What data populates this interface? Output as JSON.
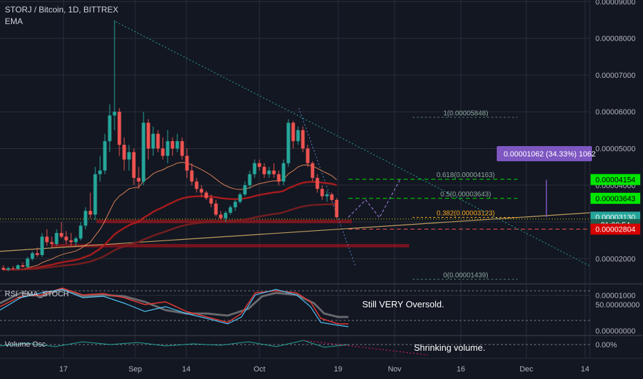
{
  "header": {
    "symbol": "STORJ / Bitcoin, 1D, BITTREX",
    "indicator": "EMA"
  },
  "panes": {
    "rsi_title": "RSI_EMA_STOCH",
    "volume_title": "Volume Osc"
  },
  "colors": {
    "background": "#131722",
    "up_candle": "#26a69a",
    "down_candle": "#ef5350",
    "grid": "#2a2e39",
    "axis_text": "#b2b5be",
    "fib_green": "#26a69a",
    "fib_orange": "#f5a623",
    "target_green": "#00e600",
    "current_price": "#26a69a",
    "support_red": "#c4121c",
    "measure_purple": "#7e57c2"
  },
  "chart_data": {
    "type": "candlestick",
    "price_axis": {
      "ticks": [
        "0.00009000",
        "0.00008000",
        "0.00007000",
        "0.00006000",
        "0.00005000",
        "0.00004000",
        "0.00003000",
        "0.00002000",
        "0.00001000"
      ],
      "ylim": [
        8.5e-06,
        9.15e-05
      ]
    },
    "time_axis": {
      "labels": [
        "17",
        "Sep",
        "14",
        "Oct",
        "19",
        "Nov",
        "16",
        "Dec",
        "14"
      ]
    },
    "candles_key": [
      "open",
      "high",
      "low",
      "close"
    ],
    "candles": [
      [
        1.75,
        1.82,
        1.68,
        1.7
      ],
      [
        1.7,
        1.78,
        1.66,
        1.74
      ],
      [
        1.74,
        1.8,
        1.7,
        1.72
      ],
      [
        1.72,
        1.85,
        1.7,
        1.82
      ],
      [
        1.82,
        1.9,
        1.76,
        1.78
      ],
      [
        1.78,
        2.05,
        1.75,
        2.0
      ],
      [
        2.0,
        2.2,
        1.95,
        2.15
      ],
      [
        2.15,
        2.3,
        2.05,
        2.1
      ],
      [
        2.1,
        2.7,
        2.05,
        2.6
      ],
      [
        2.6,
        2.8,
        2.35,
        2.45
      ],
      [
        2.45,
        2.6,
        2.3,
        2.4
      ],
      [
        2.4,
        2.8,
        2.35,
        2.7
      ],
      [
        2.7,
        3.0,
        2.55,
        2.6
      ],
      [
        2.6,
        2.75,
        2.4,
        2.5
      ],
      [
        2.5,
        2.7,
        2.35,
        2.45
      ],
      [
        2.45,
        2.6,
        2.35,
        2.55
      ],
      [
        2.55,
        3.0,
        2.5,
        2.9
      ],
      [
        2.9,
        3.4,
        2.8,
        3.3
      ],
      [
        3.3,
        3.8,
        3.1,
        3.2
      ],
      [
        3.2,
        4.5,
        3.05,
        4.3
      ],
      [
        4.3,
        4.8,
        4.1,
        4.4
      ],
      [
        4.4,
        5.4,
        4.3,
        5.2
      ],
      [
        5.2,
        6.2,
        4.9,
        5.9
      ],
      [
        5.9,
        8.5,
        5.5,
        6.0
      ],
      [
        6.0,
        6.1,
        4.8,
        5.1
      ],
      [
        5.1,
        5.3,
        4.4,
        4.7
      ],
      [
        4.7,
        5.1,
        4.4,
        4.9
      ],
      [
        4.9,
        5.0,
        4.0,
        4.2
      ],
      [
        4.2,
        4.5,
        3.9,
        4.1
      ],
      [
        4.1,
        6.0,
        4.0,
        5.7
      ],
      [
        5.7,
        5.8,
        4.7,
        5.0
      ],
      [
        5.0,
        5.6,
        4.8,
        5.4
      ],
      [
        5.4,
        5.5,
        4.9,
        5.0
      ],
      [
        5.0,
        5.3,
        4.7,
        4.8
      ],
      [
        4.8,
        5.5,
        4.6,
        5.2
      ],
      [
        5.2,
        5.3,
        4.8,
        5.0
      ],
      [
        5.0,
        5.4,
        4.9,
        5.2
      ],
      [
        5.2,
        5.3,
        4.7,
        4.8
      ],
      [
        4.8,
        5.0,
        4.2,
        4.4
      ],
      [
        4.4,
        4.6,
        4.0,
        4.1
      ],
      [
        4.1,
        4.2,
        3.8,
        3.9
      ],
      [
        3.9,
        4.0,
        3.7,
        3.8
      ],
      [
        3.8,
        3.85,
        3.6,
        3.65
      ],
      [
        3.65,
        3.75,
        3.4,
        3.5
      ],
      [
        3.5,
        3.6,
        3.15,
        3.2
      ],
      [
        3.2,
        3.3,
        3.05,
        3.1
      ],
      [
        3.1,
        3.3,
        3.0,
        3.25
      ],
      [
        3.25,
        3.45,
        3.2,
        3.4
      ],
      [
        3.4,
        3.6,
        3.3,
        3.55
      ],
      [
        3.55,
        3.8,
        3.5,
        3.75
      ],
      [
        3.75,
        4.1,
        3.7,
        4.0
      ],
      [
        4.0,
        4.4,
        3.9,
        4.3
      ],
      [
        4.3,
        4.7,
        4.2,
        4.6
      ],
      [
        4.6,
        4.7,
        4.4,
        4.5
      ],
      [
        4.5,
        4.6,
        4.2,
        4.3
      ],
      [
        4.3,
        4.5,
        4.2,
        4.4
      ],
      [
        4.4,
        4.6,
        4.2,
        4.3
      ],
      [
        4.3,
        4.4,
        4.0,
        4.1
      ],
      [
        4.1,
        4.7,
        4.0,
        4.6
      ],
      [
        4.6,
        5.8,
        4.5,
        5.7
      ],
      [
        5.7,
        5.75,
        5.0,
        5.2
      ],
      [
        5.2,
        5.6,
        5.1,
        5.5
      ],
      [
        5.5,
        5.6,
        4.9,
        5.0
      ],
      [
        5.0,
        5.1,
        4.5,
        4.6
      ],
      [
        4.6,
        4.65,
        4.1,
        4.2
      ],
      [
        4.2,
        4.3,
        3.8,
        3.9
      ],
      [
        3.9,
        4.0,
        3.6,
        3.7
      ],
      [
        3.7,
        3.85,
        3.55,
        3.75
      ],
      [
        3.75,
        3.8,
        3.55,
        3.6
      ],
      [
        3.6,
        3.65,
        3.1,
        3.13
      ]
    ],
    "fibonacci": [
      {
        "label": "1(0.00005848)",
        "value": 5.848
      },
      {
        "label": "0.618(0.00004163)",
        "value": 4.163
      },
      {
        "label": "0.5(0.00003643)",
        "value": 3.643
      },
      {
        "label": "0.382(0.00003123)",
        "value": 3.123
      },
      {
        "label": "0(0.00001439)",
        "value": 1.439
      }
    ],
    "price_tags": [
      {
        "label": "0.00004154",
        "value": 4.154,
        "kind": "target"
      },
      {
        "label": "0.00003643",
        "value": 3.643,
        "kind": "target"
      },
      {
        "label": "0.00003130",
        "value": 3.13,
        "kind": "current"
      },
      {
        "label": "21:20:54",
        "value": 2.93,
        "kind": "countdown"
      },
      {
        "label": "0.00002804",
        "value": 2.804,
        "kind": "support"
      }
    ],
    "measure_label": "0.00001062 (34.33%) 1062",
    "rsi_axis": {
      "ticks": [
        "50.00000000",
        "0.00000000"
      ]
    },
    "volume_axis": {
      "ticks": [
        "0.00%"
      ]
    },
    "annotations": [
      "Still VERY Oversold.",
      "Shrinking volume."
    ]
  }
}
